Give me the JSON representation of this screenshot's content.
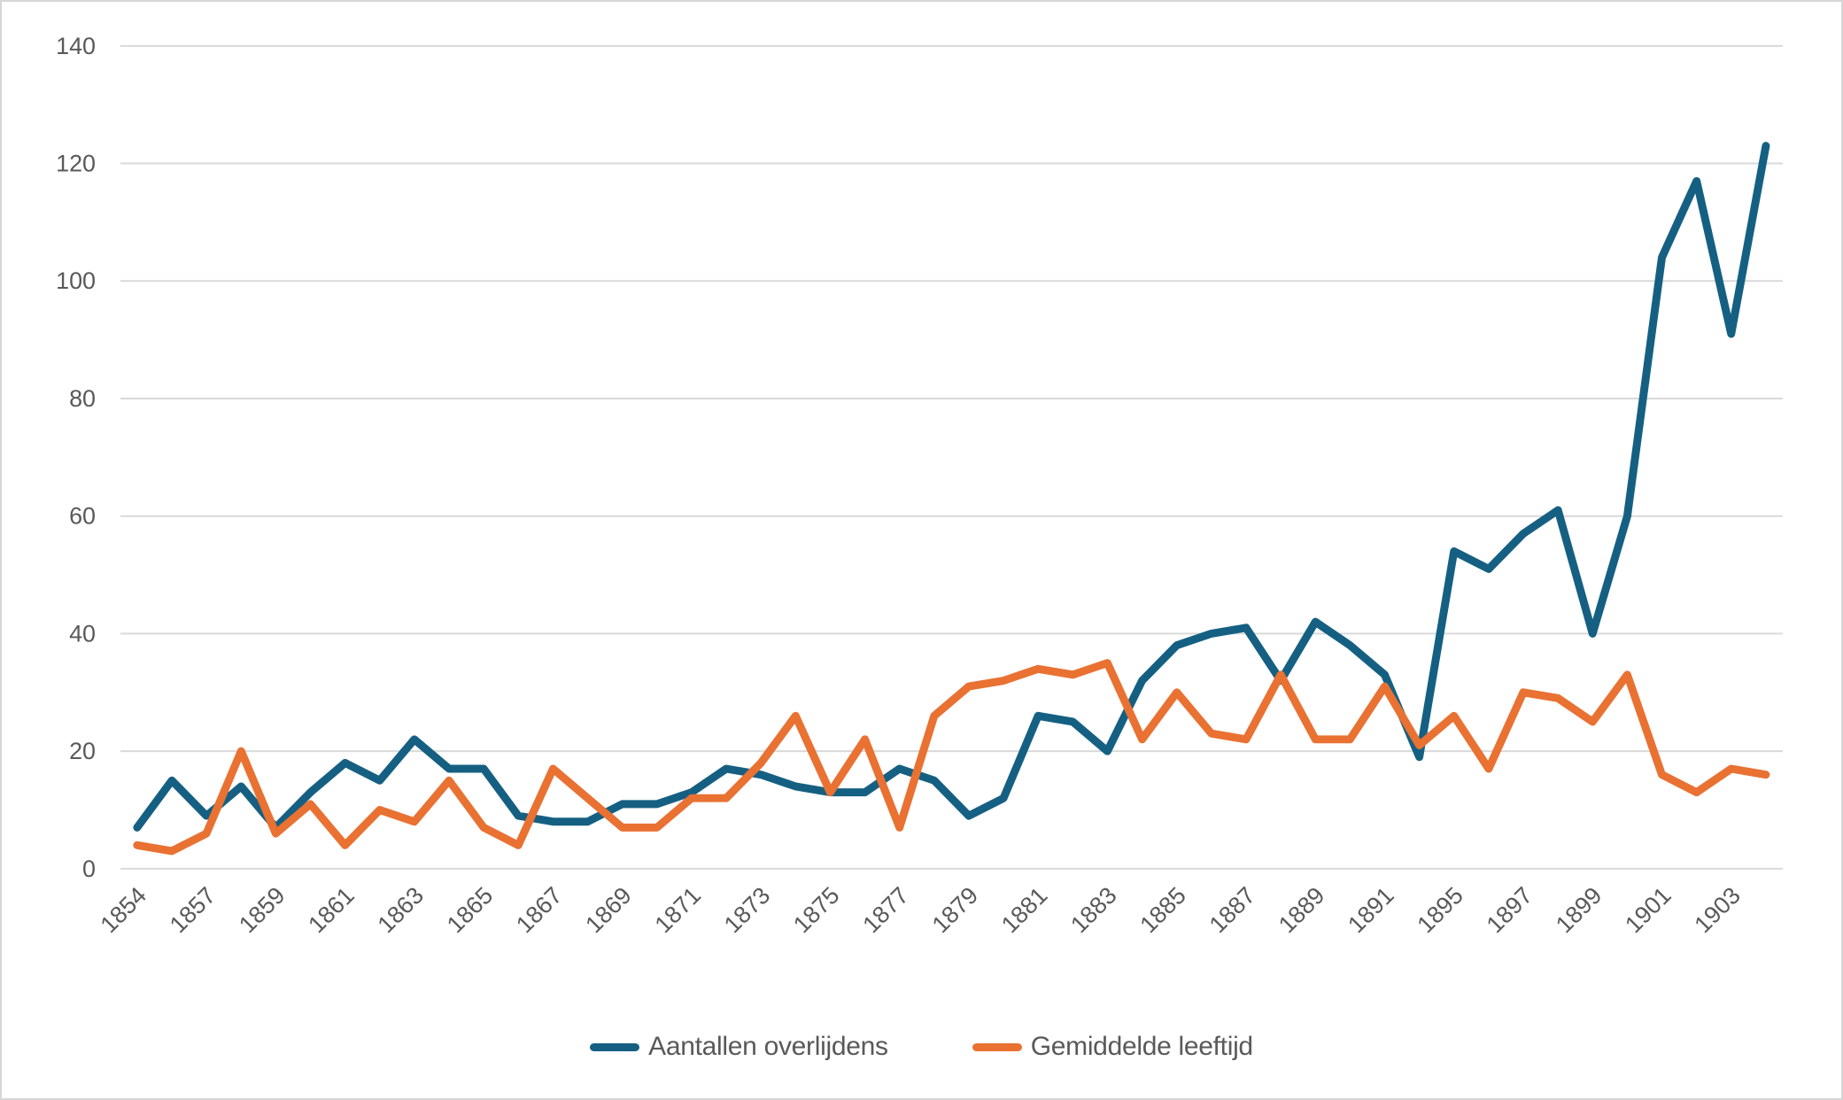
{
  "chart_data": {
    "type": "line",
    "title": "",
    "xlabel": "",
    "ylabel": "",
    "ylim": [
      0,
      140
    ],
    "ytick_step": 20,
    "ytick_labels": [
      "0",
      "20",
      "40",
      "60",
      "80",
      "100",
      "120",
      "140"
    ],
    "grid": true,
    "legend_position": "bottom",
    "x_tick_labels": [
      "1854",
      "1857",
      "1859",
      "1861",
      "1863",
      "1865",
      "1867",
      "1869",
      "1871",
      "1873",
      "1875",
      "1877",
      "1879",
      "1881",
      "1883",
      "1885",
      "1887",
      "1889",
      "1891",
      "1895",
      "1897",
      "1899",
      "1901",
      "1903"
    ],
    "categories": [
      "1854",
      "",
      "1857",
      "",
      "1859",
      "",
      "1861",
      "",
      "1863",
      "",
      "1865",
      "",
      "1867",
      "",
      "1869",
      "",
      "1871",
      "",
      "1873",
      "",
      "1875",
      "",
      "1877",
      "",
      "1879",
      "",
      "1881",
      "",
      "1883",
      "",
      "1885",
      "",
      "1887",
      "",
      "1889",
      "",
      "1891",
      "",
      "1895",
      "",
      "1897",
      "",
      "1899",
      "",
      "1901",
      "",
      "1903",
      ""
    ],
    "series": [
      {
        "name": "Aantallen overlijdens",
        "color": "#156082",
        "values": [
          7,
          15,
          9,
          14,
          7,
          13,
          18,
          15,
          22,
          17,
          17,
          9,
          8,
          8,
          11,
          11,
          13,
          17,
          16,
          14,
          13,
          13,
          17,
          15,
          9,
          12,
          26,
          25,
          20,
          32,
          38,
          40,
          41,
          32,
          42,
          38,
          33,
          19,
          54,
          51,
          57,
          61,
          40,
          60,
          104,
          117,
          91,
          123
        ]
      },
      {
        "name": "Gemiddelde leeftijd",
        "color": "#E97132",
        "values": [
          4,
          3,
          6,
          20,
          6,
          11,
          4,
          10,
          8,
          15,
          7,
          4,
          17,
          12,
          7,
          7,
          12,
          12,
          18,
          26,
          13,
          22,
          7,
          26,
          31,
          32,
          34,
          33,
          35,
          22,
          30,
          23,
          22,
          33,
          22,
          22,
          31,
          21,
          26,
          17,
          30,
          29,
          25,
          33,
          16,
          13,
          17,
          16
        ]
      }
    ]
  },
  "colors": {
    "axis_text": "#595959",
    "gridline": "#d9d9d9",
    "background": "#ffffff",
    "frame_border": "#d6d6d6"
  }
}
